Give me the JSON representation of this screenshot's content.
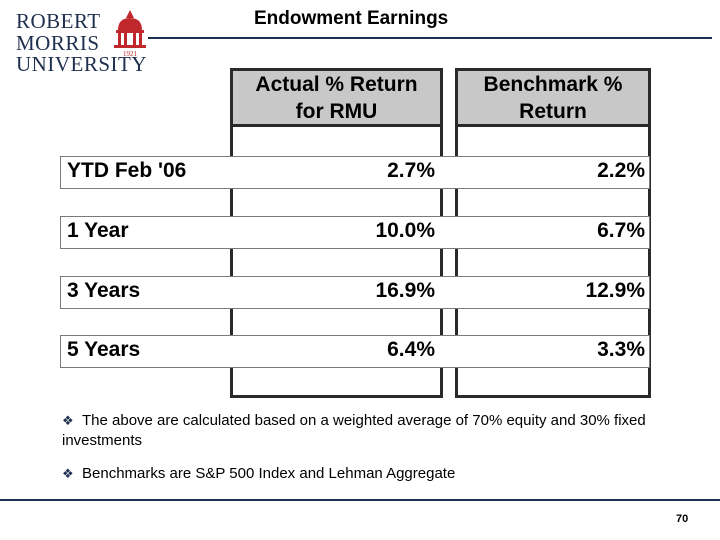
{
  "logo": {
    "line1": "ROBERT",
    "line2": "MORRIS",
    "line3": "UNIVERSITY",
    "seal_year": "1921",
    "accent_color": "#c0282d"
  },
  "title": "Endowment Earnings",
  "table": {
    "columns": [
      "Actual % Return for RMU",
      "Benchmark % Return"
    ],
    "col1_line1": "Actual % Return",
    "col1_line2": "for RMU",
    "col2_line1": "Benchmark %",
    "col2_line2": "Return",
    "rows": [
      {
        "label": "YTD Feb '06",
        "actual": "2.7%",
        "benchmark": "2.2%"
      },
      {
        "label": "1 Year",
        "actual": "10.0%",
        "benchmark": "6.7%"
      },
      {
        "label": "3 Years",
        "actual": "16.9%",
        "benchmark": "12.9%"
      },
      {
        "label": "5 Years",
        "actual": "6.4%",
        "benchmark": "3.3%"
      }
    ]
  },
  "notes": [
    "The above are calculated based on a weighted average of 70% equity and 30% fixed investments",
    "Benchmarks are S&P 500 Index and Lehman Aggregate"
  ],
  "bullet_glyph": "❖",
  "page_number": "70"
}
